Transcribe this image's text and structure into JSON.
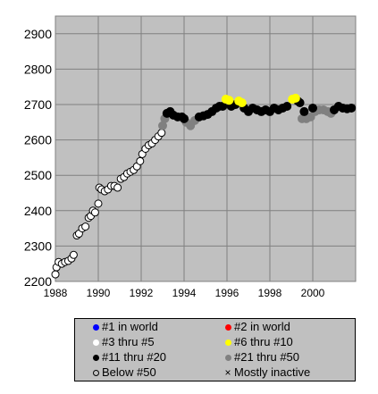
{
  "chart_data": {
    "type": "scatter",
    "title": "",
    "xlabel": "",
    "ylabel": "",
    "xlim": [
      1988,
      2002
    ],
    "ylim": [
      2200,
      2950
    ],
    "xticks": [
      "1988",
      "1990",
      "1992",
      "1994",
      "1996",
      "1998",
      "2000"
    ],
    "yticks": [
      "2200",
      "2300",
      "2400",
      "2500",
      "2600",
      "2700",
      "2800",
      "2900"
    ],
    "grid": true,
    "legend_position": "bottom",
    "legend": [
      {
        "label": "#1 in world",
        "marker": "dot",
        "color": "#0000ff"
      },
      {
        "label": "#2 in world",
        "marker": "dot",
        "color": "#ff0000"
      },
      {
        "label": "#3 thru #5",
        "marker": "dot",
        "color": "#ffffff"
      },
      {
        "label": "#6 thru #10",
        "marker": "dot",
        "color": "#ffff00"
      },
      {
        "label": "#11 thru #20",
        "marker": "dot",
        "color": "#000000"
      },
      {
        "label": "#21 thru #50",
        "marker": "dot",
        "color": "#808080"
      },
      {
        "label": "Below #50",
        "marker": "ring",
        "color": "#000000"
      },
      {
        "label": "Mostly inactive",
        "marker": "x",
        "color": "#000000"
      }
    ],
    "series": [
      {
        "color": "#ffffff",
        "stroke": "#000000",
        "marker": "ring",
        "points": [
          [
            1988.0,
            2220
          ],
          [
            1988.05,
            2240
          ],
          [
            1988.15,
            2255
          ],
          [
            1988.3,
            2250
          ],
          [
            1988.45,
            2255
          ],
          [
            1988.6,
            2258
          ],
          [
            1988.75,
            2265
          ],
          [
            1988.85,
            2275
          ],
          [
            1989.0,
            2330
          ],
          [
            1989.1,
            2335
          ],
          [
            1989.25,
            2350
          ],
          [
            1989.4,
            2355
          ],
          [
            1989.55,
            2380
          ],
          [
            1989.65,
            2385
          ],
          [
            1989.75,
            2400
          ],
          [
            1989.85,
            2395
          ],
          [
            1990.0,
            2420
          ],
          [
            1990.05,
            2465
          ],
          [
            1990.15,
            2460
          ],
          [
            1990.3,
            2455
          ],
          [
            1990.45,
            2460
          ],
          [
            1990.6,
            2470
          ],
          [
            1990.75,
            2470
          ],
          [
            1990.9,
            2465
          ],
          [
            1991.05,
            2490
          ],
          [
            1991.2,
            2495
          ],
          [
            1991.35,
            2505
          ],
          [
            1991.5,
            2510
          ],
          [
            1991.65,
            2515
          ],
          [
            1991.8,
            2525
          ],
          [
            1991.95,
            2540
          ],
          [
            1992.05,
            2560
          ],
          [
            1992.2,
            2575
          ],
          [
            1992.35,
            2585
          ],
          [
            1992.5,
            2590
          ],
          [
            1992.65,
            2600
          ],
          [
            1992.8,
            2610
          ],
          [
            1992.95,
            2620
          ]
        ]
      },
      {
        "color": "#808080",
        "stroke": "#808080",
        "marker": "dot",
        "points": [
          [
            1993.0,
            2640
          ],
          [
            1993.1,
            2660
          ],
          [
            1994.1,
            2650
          ],
          [
            1994.3,
            2640
          ],
          [
            1994.5,
            2655
          ],
          [
            1999.5,
            2660
          ],
          [
            1999.7,
            2660
          ],
          [
            1999.9,
            2665
          ],
          [
            2000.1,
            2680
          ],
          [
            2000.3,
            2685
          ],
          [
            2000.5,
            2685
          ],
          [
            2000.7,
            2680
          ],
          [
            2000.85,
            2675
          ]
        ]
      },
      {
        "color": "#000000",
        "stroke": "#000000",
        "marker": "dot",
        "points": [
          [
            1993.2,
            2675
          ],
          [
            1993.35,
            2680
          ],
          [
            1993.5,
            2670
          ],
          [
            1993.7,
            2665
          ],
          [
            1993.9,
            2665
          ],
          [
            1994.0,
            2660
          ],
          [
            1994.7,
            2665
          ],
          [
            1994.9,
            2668
          ],
          [
            1995.1,
            2672
          ],
          [
            1995.3,
            2680
          ],
          [
            1995.5,
            2690
          ],
          [
            1995.65,
            2695
          ],
          [
            1995.8,
            2695
          ],
          [
            1996.2,
            2695
          ],
          [
            1996.4,
            2700
          ],
          [
            1996.8,
            2690
          ],
          [
            1997.0,
            2680
          ],
          [
            1997.2,
            2690
          ],
          [
            1997.4,
            2685
          ],
          [
            1997.6,
            2680
          ],
          [
            1997.8,
            2685
          ],
          [
            1998.0,
            2680
          ],
          [
            1998.2,
            2690
          ],
          [
            1998.4,
            2685
          ],
          [
            1998.6,
            2690
          ],
          [
            1998.8,
            2695
          ],
          [
            1999.4,
            2705
          ],
          [
            1999.6,
            2680
          ],
          [
            2000.0,
            2690
          ],
          [
            2001.0,
            2685
          ],
          [
            2001.2,
            2695
          ],
          [
            2001.4,
            2690
          ],
          [
            2001.6,
            2688
          ],
          [
            2001.8,
            2690
          ],
          [
            1999.3,
            2710
          ]
        ]
      },
      {
        "color": "#ffff00",
        "stroke": "#ffff00",
        "marker": "dot",
        "points": [
          [
            1995.95,
            2715
          ],
          [
            1996.1,
            2712
          ],
          [
            1996.55,
            2710
          ],
          [
            1996.7,
            2705
          ],
          [
            1999.05,
            2715
          ],
          [
            1999.2,
            2718
          ]
        ]
      }
    ]
  }
}
